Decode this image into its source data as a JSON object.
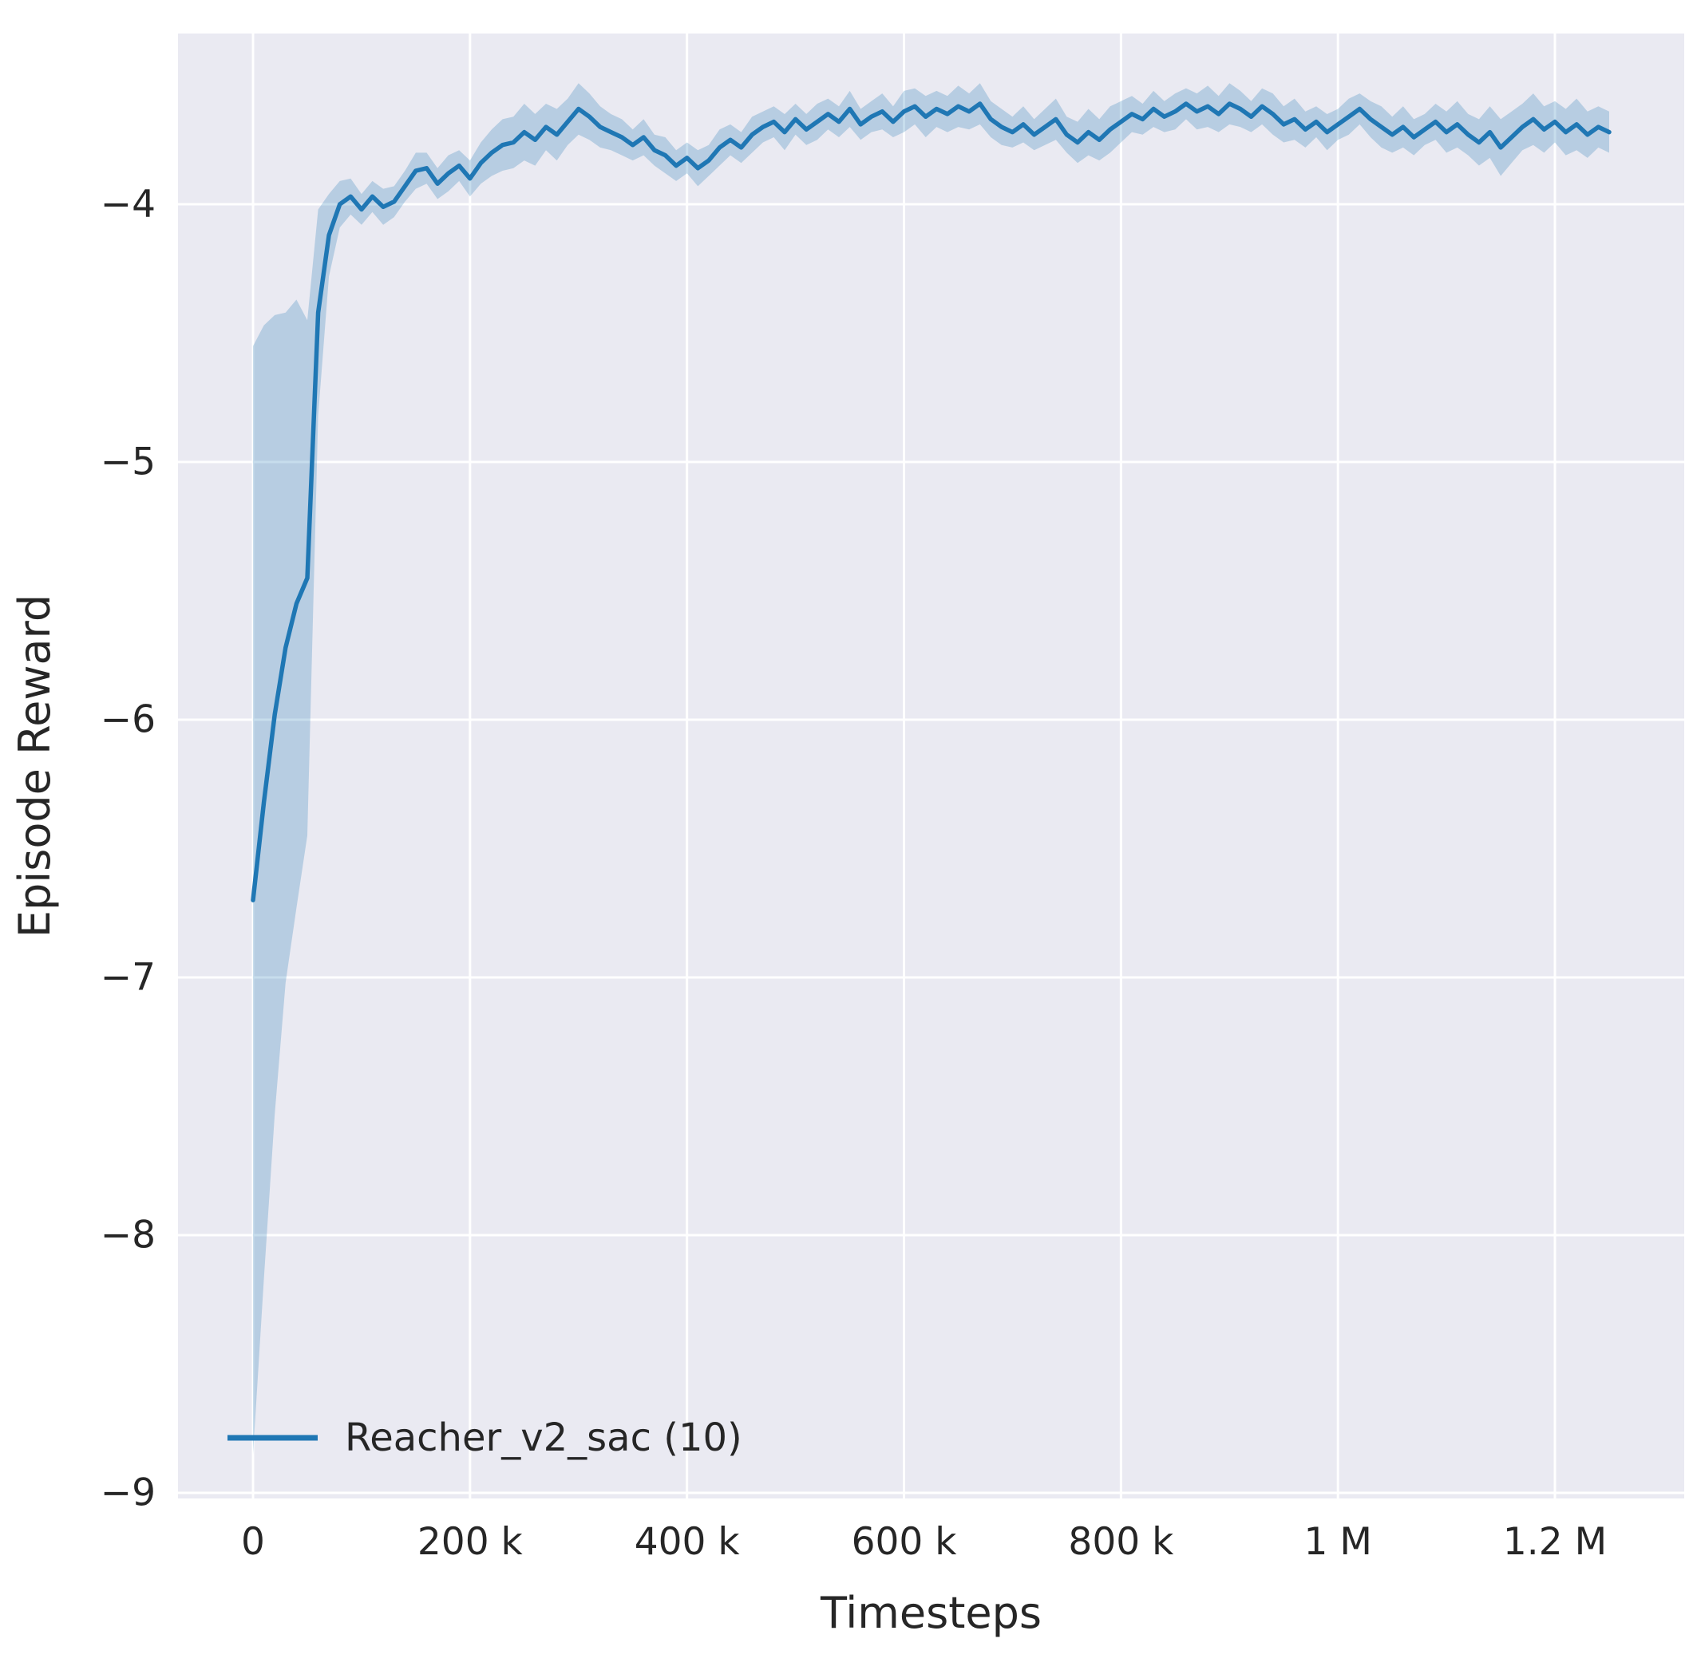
{
  "chart_data": {
    "type": "line",
    "title": "",
    "xlabel": "Timesteps",
    "ylabel": "Episode Reward",
    "grid": true,
    "style": "seaborn-darkgrid",
    "legend_position": "lower left",
    "x_tick_values_k": [
      0,
      200,
      400,
      600,
      800,
      1000,
      1200
    ],
    "x_tick_labels": [
      "0",
      "200 k",
      "400 k",
      "600 k",
      "800 k",
      "1 M",
      "1.2 M"
    ],
    "y_tick_values": [
      -4,
      -5,
      -6,
      -7,
      -8,
      -9
    ],
    "y_tick_labels": [
      "−4",
      "−5",
      "−6",
      "−7",
      "−8",
      "−9"
    ],
    "x_range_k": [
      0,
      1250
    ],
    "ylim": [
      -9.3,
      -3.34
    ],
    "colors": {
      "line": "#1f77b4",
      "band": "#1f77b4",
      "band_opacity": 0.25,
      "plot_bg": "#eaeaf2",
      "grid": "#ffffff",
      "text": "#262626"
    },
    "series": [
      {
        "name": "Reacher_v2_sac (10)",
        "color": "#1f77b4",
        "x_k": [
          0,
          10,
          20,
          30,
          40,
          50,
          60,
          70,
          80,
          90,
          100,
          110,
          120,
          130,
          140,
          150,
          160,
          170,
          180,
          190,
          200,
          210,
          220,
          230,
          240,
          250,
          260,
          270,
          280,
          290,
          300,
          310,
          320,
          330,
          340,
          350,
          360,
          370,
          380,
          390,
          400,
          410,
          420,
          430,
          440,
          450,
          460,
          470,
          480,
          490,
          500,
          510,
          520,
          530,
          540,
          550,
          560,
          570,
          580,
          590,
          600,
          610,
          620,
          630,
          640,
          650,
          660,
          670,
          680,
          690,
          700,
          710,
          720,
          730,
          740,
          750,
          760,
          770,
          780,
          790,
          800,
          810,
          820,
          830,
          840,
          850,
          860,
          870,
          880,
          890,
          900,
          910,
          920,
          930,
          940,
          950,
          960,
          970,
          980,
          990,
          1000,
          1010,
          1020,
          1030,
          1040,
          1050,
          1060,
          1070,
          1080,
          1090,
          1100,
          1110,
          1120,
          1130,
          1140,
          1150,
          1160,
          1170,
          1180,
          1190,
          1200,
          1210,
          1220,
          1230,
          1240,
          1250
        ],
        "mean": [
          -6.7,
          -6.32,
          -5.98,
          -5.72,
          -5.55,
          -5.45,
          -4.42,
          -4.12,
          -4.0,
          -3.97,
          -4.02,
          -3.97,
          -4.01,
          -3.99,
          -3.93,
          -3.87,
          -3.86,
          -3.92,
          -3.88,
          -3.85,
          -3.9,
          -3.84,
          -3.8,
          -3.77,
          -3.76,
          -3.72,
          -3.75,
          -3.7,
          -3.73,
          -3.68,
          -3.63,
          -3.66,
          -3.7,
          -3.72,
          -3.74,
          -3.77,
          -3.74,
          -3.79,
          -3.81,
          -3.85,
          -3.82,
          -3.86,
          -3.83,
          -3.78,
          -3.75,
          -3.78,
          -3.73,
          -3.7,
          -3.68,
          -3.72,
          -3.67,
          -3.71,
          -3.68,
          -3.65,
          -3.68,
          -3.63,
          -3.69,
          -3.66,
          -3.64,
          -3.68,
          -3.64,
          -3.62,
          -3.66,
          -3.63,
          -3.65,
          -3.62,
          -3.64,
          -3.61,
          -3.67,
          -3.7,
          -3.72,
          -3.69,
          -3.73,
          -3.7,
          -3.67,
          -3.73,
          -3.76,
          -3.72,
          -3.75,
          -3.71,
          -3.68,
          -3.65,
          -3.67,
          -3.63,
          -3.66,
          -3.64,
          -3.61,
          -3.64,
          -3.62,
          -3.65,
          -3.61,
          -3.63,
          -3.66,
          -3.62,
          -3.65,
          -3.69,
          -3.67,
          -3.71,
          -3.68,
          -3.72,
          -3.69,
          -3.66,
          -3.63,
          -3.67,
          -3.7,
          -3.73,
          -3.7,
          -3.74,
          -3.71,
          -3.68,
          -3.72,
          -3.69,
          -3.73,
          -3.76,
          -3.72,
          -3.78,
          -3.74,
          -3.7,
          -3.67,
          -3.71,
          -3.68,
          -3.72,
          -3.69,
          -3.73,
          -3.7,
          -3.72
        ],
        "band_halfwidth": [
          2.15,
          1.85,
          1.55,
          1.3,
          1.18,
          1.0,
          0.4,
          0.16,
          0.09,
          0.07,
          0.06,
          0.06,
          0.07,
          0.06,
          0.06,
          0.07,
          0.06,
          0.06,
          0.07,
          0.06,
          0.07,
          0.08,
          0.09,
          0.1,
          0.1,
          0.11,
          0.1,
          0.09,
          0.1,
          0.09,
          0.1,
          0.09,
          0.08,
          0.07,
          0.07,
          0.06,
          0.07,
          0.06,
          0.07,
          0.06,
          0.06,
          0.07,
          0.06,
          0.07,
          0.06,
          0.06,
          0.07,
          0.06,
          0.06,
          0.07,
          0.06,
          0.06,
          0.07,
          0.06,
          0.06,
          0.07,
          0.06,
          0.06,
          0.07,
          0.06,
          0.08,
          0.07,
          0.08,
          0.07,
          0.07,
          0.08,
          0.07,
          0.08,
          0.07,
          0.07,
          0.06,
          0.07,
          0.06,
          0.07,
          0.08,
          0.07,
          0.08,
          0.09,
          0.08,
          0.09,
          0.08,
          0.07,
          0.06,
          0.07,
          0.06,
          0.07,
          0.06,
          0.07,
          0.08,
          0.07,
          0.08,
          0.07,
          0.06,
          0.07,
          0.08,
          0.07,
          0.08,
          0.07,
          0.06,
          0.07,
          0.06,
          0.07,
          0.06,
          0.07,
          0.08,
          0.07,
          0.08,
          0.07,
          0.06,
          0.07,
          0.08,
          0.09,
          0.08,
          0.09,
          0.1,
          0.11,
          0.1,
          0.09,
          0.1,
          0.09,
          0.08,
          0.09,
          0.1,
          0.09,
          0.08,
          0.08
        ]
      }
    ],
    "legend": [
      {
        "label": "Reacher_v2_sac (10)",
        "color": "#1f77b4"
      }
    ]
  }
}
